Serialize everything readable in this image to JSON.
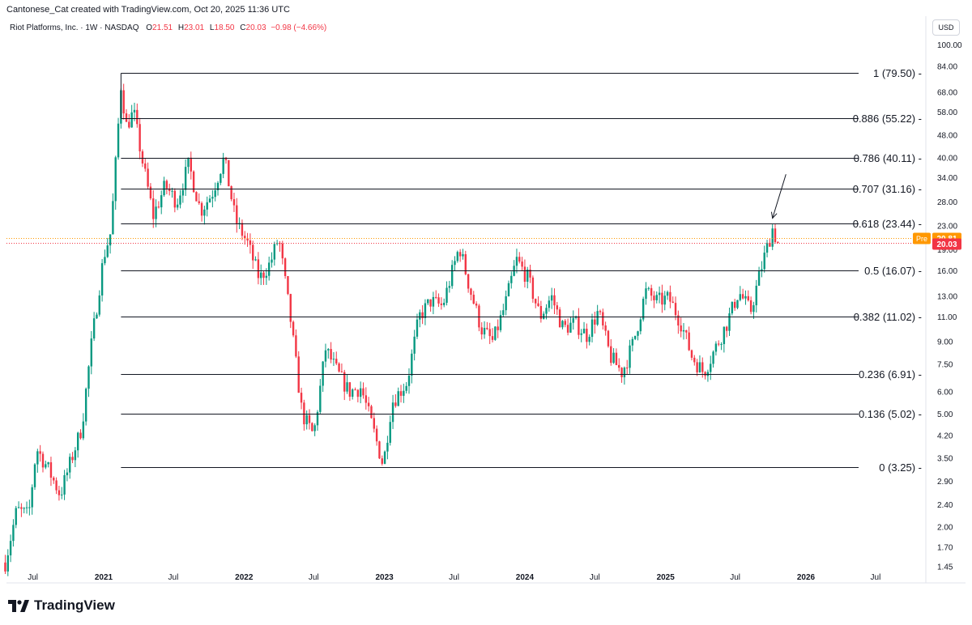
{
  "header": {
    "text": "Cantonese_Cat created with TradingView.com, Oct 20, 2025 11:36 UTC"
  },
  "legend": {
    "symbol": "Riot Platforms, Inc. · 1W · NASDAQ",
    "open_label": "O",
    "open": "21.51",
    "high_label": "H",
    "high": "23.01",
    "low_label": "L",
    "low": "18.50",
    "close_label": "C",
    "close": "20.03",
    "change": "−0.98 (−4.66%)"
  },
  "axis": {
    "currency": "USD",
    "y_ticks": [
      "100.00",
      "84.00",
      "68.00",
      "58.00",
      "48.00",
      "40.00",
      "34.00",
      "28.00",
      "23.00",
      "19.00",
      "16.00",
      "13.00",
      "11.00",
      "9.00",
      "7.50",
      "6.00",
      "5.00",
      "4.20",
      "3.50",
      "2.90",
      "2.40",
      "2.00",
      "1.70",
      "1.45"
    ],
    "x_ticks": [
      "Jul",
      "2021",
      "Jul",
      "2022",
      "Jul",
      "2023",
      "Jul",
      "2024",
      "Jul",
      "2025",
      "Jul",
      "2026",
      "Jul"
    ]
  },
  "price_tags": {
    "pre_label": "Pre",
    "pre_value": "20.81",
    "last_value": "20.03",
    "pre_color": "#ff9800",
    "last_color": "#f23645"
  },
  "colors": {
    "up": "#089981",
    "down": "#f23645",
    "fib_line": "#131722"
  },
  "chart_data": {
    "type": "candlestick",
    "title": "Riot Platforms, Inc. · 1W · NASDAQ",
    "y_scale": "log",
    "ylim": [
      1.4,
      110
    ],
    "xlim": [
      "2020-04-15",
      "2026-09-01"
    ],
    "grid": false,
    "fib_levels": [
      {
        "label": "1 (79.50)",
        "value": 79.5
      },
      {
        "label": "0.886 (55.22)",
        "value": 55.22
      },
      {
        "label": "0.786 (40.11)",
        "value": 40.11
      },
      {
        "label": "0.707 (31.16)",
        "value": 31.16
      },
      {
        "label": "0.618 (23.44)",
        "value": 23.44
      },
      {
        "label": "0.5 (16.07)",
        "value": 16.07
      },
      {
        "label": "0.382 (11.02)",
        "value": 11.02
      },
      {
        "label": "0.236 (6.91)",
        "value": 6.91
      },
      {
        "label": "0.136 (5.02)",
        "value": 5.02
      },
      {
        "label": "0 (3.25)",
        "value": 3.25
      }
    ],
    "fib_start": "2021-02-15",
    "annotation": {
      "type": "arrow",
      "from": [
        "2025-11-10",
        35.0
      ],
      "to": [
        "2025-10-06",
        24.5
      ]
    },
    "price_path": [
      [
        "2020-04-20",
        1.5
      ],
      [
        "2020-05-20",
        2.3
      ],
      [
        "2020-06-20",
        2.2
      ],
      [
        "2020-07-10",
        3.8
      ],
      [
        "2020-08-10",
        3.2
      ],
      [
        "2020-09-10",
        2.6
      ],
      [
        "2020-10-10",
        3.5
      ],
      [
        "2020-11-05",
        4.5
      ],
      [
        "2020-12-01",
        9.0
      ],
      [
        "2021-01-01",
        18.0
      ],
      [
        "2021-01-20",
        22.0
      ],
      [
        "2021-02-15",
        72.0
      ],
      [
        "2021-03-01",
        52.0
      ],
      [
        "2021-03-20",
        58.0
      ],
      [
        "2021-04-10",
        40.0
      ],
      [
        "2021-05-10",
        25.0
      ],
      [
        "2021-06-10",
        32.0
      ],
      [
        "2021-07-10",
        28.0
      ],
      [
        "2021-08-10",
        38.0
      ],
      [
        "2021-09-10",
        26.0
      ],
      [
        "2021-10-10",
        30.0
      ],
      [
        "2021-11-10",
        40.0
      ],
      [
        "2021-12-10",
        24.0
      ],
      [
        "2022-01-10",
        20.0
      ],
      [
        "2022-02-10",
        15.0
      ],
      [
        "2022-03-10",
        17.0
      ],
      [
        "2022-04-01",
        21.0
      ],
      [
        "2022-05-01",
        11.0
      ],
      [
        "2022-06-01",
        5.0
      ],
      [
        "2022-07-01",
        4.2
      ],
      [
        "2022-08-01",
        8.5
      ],
      [
        "2022-09-01",
        7.0
      ],
      [
        "2022-10-01",
        6.0
      ],
      [
        "2022-11-01",
        6.2
      ],
      [
        "2022-12-01",
        4.5
      ],
      [
        "2022-12-29",
        3.3
      ],
      [
        "2023-01-20",
        5.5
      ],
      [
        "2023-03-01",
        6.5
      ],
      [
        "2023-04-01",
        11.0
      ],
      [
        "2023-05-01",
        12.5
      ],
      [
        "2023-06-01",
        12.0
      ],
      [
        "2023-07-15",
        19.5
      ],
      [
        "2023-08-10",
        14.0
      ],
      [
        "2023-09-10",
        10.0
      ],
      [
        "2023-10-10",
        9.0
      ],
      [
        "2023-11-10",
        12.0
      ],
      [
        "2023-12-10",
        17.5
      ],
      [
        "2024-01-10",
        15.0
      ],
      [
        "2024-02-10",
        11.0
      ],
      [
        "2024-03-10",
        13.0
      ],
      [
        "2024-04-10",
        10.0
      ],
      [
        "2024-05-10",
        10.5
      ],
      [
        "2024-06-10",
        9.5
      ],
      [
        "2024-07-10",
        11.5
      ],
      [
        "2024-08-10",
        8.0
      ],
      [
        "2024-09-10",
        7.0
      ],
      [
        "2024-10-10",
        9.0
      ],
      [
        "2024-11-10",
        13.5
      ],
      [
        "2024-12-10",
        12.5
      ],
      [
        "2025-01-10",
        12.8
      ],
      [
        "2025-02-10",
        10.5
      ],
      [
        "2025-03-10",
        8.0
      ],
      [
        "2025-04-10",
        7.0
      ],
      [
        "2025-05-10",
        8.5
      ],
      [
        "2025-06-10",
        10.5
      ],
      [
        "2025-07-10",
        13.5
      ],
      [
        "2025-08-10",
        11.5
      ],
      [
        "2025-09-10",
        17.0
      ],
      [
        "2025-10-06",
        22.5
      ],
      [
        "2025-10-20",
        20.0
      ]
    ]
  }
}
